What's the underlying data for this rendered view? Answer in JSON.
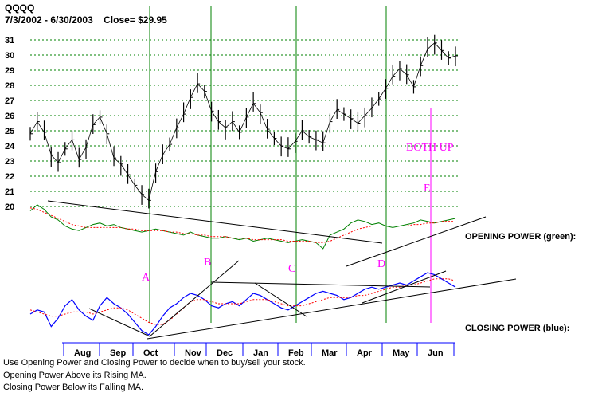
{
  "header": {
    "ticker": "QQQQ",
    "range": "7/3/2002 - 6/30/2003",
    "close_label": "Close= $29.95"
  },
  "footer": {
    "lines": [
      "Use Opening Power and Closing Power to decide when to buy/sell your stock.",
      "Opening Power Above its Rising MA.",
      "Closing Power Below its Falling MA."
    ]
  },
  "colors": {
    "price": "#000000",
    "opening_power": "#008000",
    "closing_power": "#0000ff",
    "ma": "#ff0000",
    "marker": "#008000",
    "annotation": "#ff00ff",
    "grid": "#008000",
    "trendline": "#000000"
  },
  "chart_data": {
    "type": "line",
    "title": "QQQQ",
    "subtitle": "7/3/2002 - 6/30/2003   Close= $29.95",
    "yticks": [
      20,
      21,
      22,
      23,
      24,
      25,
      26,
      27,
      28,
      29,
      30,
      31
    ],
    "ylim": [
      19.5,
      31.5
    ],
    "months": [
      "Aug",
      "Sep",
      "Oct",
      "Nov",
      "Dec",
      "Jan",
      "Feb",
      "Mar",
      "Apr",
      "May",
      "Jun"
    ],
    "price_close": [
      24.8,
      25.6,
      24.9,
      23.4,
      22.9,
      23.8,
      24.4,
      23.1,
      23.9,
      25.4,
      25.9,
      24.8,
      23.2,
      22.8,
      22.1,
      21.4,
      20.8,
      20.4,
      22.3,
      23.4,
      24.1,
      25.2,
      26.1,
      27.2,
      28.1,
      27.6,
      26.3,
      25.6,
      25.2,
      25.6,
      24.9,
      25.9,
      26.8,
      26.2,
      25.1,
      24.5,
      24.0,
      23.8,
      24.3,
      25.0,
      24.6,
      24.4,
      24.2,
      25.6,
      26.4,
      26.1,
      25.8,
      25.5,
      26.0,
      26.5,
      27.1,
      27.8,
      28.6,
      29.1,
      28.7,
      27.9,
      29.3,
      30.4,
      30.8,
      30.3,
      29.8,
      29.95
    ],
    "opening_power": [
      30,
      34,
      31,
      26,
      24,
      20,
      18,
      17,
      19,
      21,
      22,
      20,
      21,
      19,
      18,
      17,
      16,
      17,
      18,
      17,
      16,
      15,
      14,
      16,
      14,
      13,
      12,
      12,
      13,
      12,
      11,
      12,
      10,
      11,
      12,
      11,
      10,
      9,
      10,
      11,
      10,
      9,
      5,
      14,
      16,
      18,
      22,
      24,
      23,
      21,
      22,
      20,
      19,
      20,
      21,
      22,
      24,
      23,
      22,
      23,
      24,
      25
    ],
    "closing_power": [
      20,
      22,
      21,
      14,
      18,
      24,
      27,
      22,
      19,
      17,
      24,
      28,
      25,
      23,
      20,
      16,
      12,
      10,
      14,
      19,
      23,
      25,
      28,
      30,
      29,
      27,
      24,
      23,
      25,
      26,
      24,
      27,
      30,
      29,
      27,
      25,
      23,
      22,
      24,
      26,
      28,
      30,
      31,
      30,
      29,
      27,
      28,
      30,
      32,
      33,
      32,
      33,
      34,
      35,
      34,
      36,
      38,
      40,
      39,
      37,
      35,
      33
    ],
    "opening_power_ma": [
      32,
      31,
      29,
      27,
      25,
      23,
      21,
      20,
      19,
      19,
      19,
      19,
      19,
      19,
      18,
      18,
      17,
      17,
      17,
      17,
      16,
      16,
      15,
      15,
      14,
      14,
      13,
      13,
      13,
      12,
      12,
      12,
      11,
      11,
      11,
      11,
      11,
      10,
      10,
      10,
      10,
      9,
      9,
      10,
      12,
      14,
      16,
      18,
      19,
      20,
      20,
      20,
      20,
      20,
      20,
      21,
      21,
      22,
      22,
      23,
      23,
      23
    ],
    "closing_power_ma": [
      22,
      21,
      20,
      19,
      19,
      20,
      21,
      21,
      21,
      20,
      21,
      22,
      23,
      23,
      22,
      20,
      18,
      16,
      15,
      15,
      17,
      20,
      23,
      26,
      27,
      27,
      26,
      25,
      25,
      25,
      25,
      26,
      27,
      27,
      27,
      26,
      25,
      24,
      24,
      24,
      25,
      26,
      27,
      28,
      28,
      28,
      28,
      29,
      29,
      30,
      31,
      32,
      33,
      33,
      34,
      34,
      35,
      36,
      37,
      37,
      37,
      36
    ],
    "markers": [
      "A",
      "B",
      "C",
      "D",
      "E"
    ],
    "annotations": [
      "BOTH UP"
    ],
    "panel_labels": [
      "OPENING POWER (green):",
      "CLOSING POWER (blue):"
    ]
  }
}
